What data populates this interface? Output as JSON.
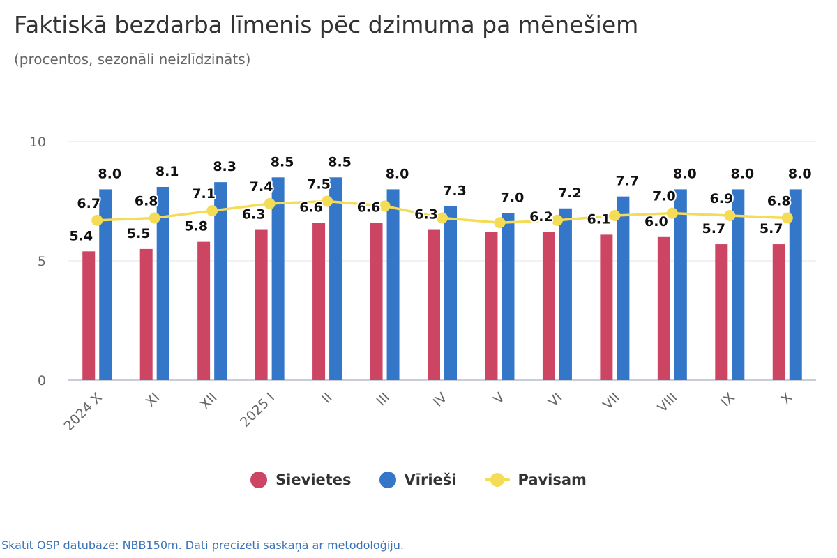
{
  "chart_data": {
    "type": "bar",
    "title": "Faktiskā bezdarba līmenis pēc dzimuma pa mēnešiem",
    "subtitle": "(procentos, sezonāli neizlīdzināts)",
    "categories": [
      "2024 X",
      "XI",
      "XII",
      "2025 I",
      "II",
      "III",
      "IV",
      "V",
      "VI",
      "VII",
      "VIII",
      "IX",
      "X"
    ],
    "series": [
      {
        "name": "Sievietes",
        "type": "bar",
        "color": "#cc4562",
        "values": [
          5.4,
          5.5,
          5.8,
          6.3,
          6.6,
          6.6,
          6.3,
          6.2,
          6.2,
          6.1,
          6.0,
          5.7,
          5.7
        ]
      },
      {
        "name": "Vīrieši",
        "type": "bar",
        "color": "#3477c8",
        "values": [
          8.0,
          8.1,
          8.3,
          8.5,
          8.5,
          8.0,
          7.3,
          7.0,
          7.2,
          7.7,
          8.0,
          8.0,
          8.0
        ]
      },
      {
        "name": "Pavisam",
        "type": "line",
        "color": "#f5dc57",
        "values": [
          6.7,
          6.8,
          7.1,
          7.4,
          7.5,
          7.3,
          6.8,
          6.6,
          6.7,
          6.9,
          7.0,
          6.9,
          6.8
        ]
      }
    ],
    "data_labels": {
      "Sievietes": [
        "5.4",
        "5.5",
        "5.8",
        "6.3",
        "6.6",
        "6.6",
        "6.3",
        "",
        "6.2",
        "6.1",
        "6.0",
        "5.7",
        "5.7"
      ],
      "Vīrieši": [
        "8.0",
        "8.1",
        "8.3",
        "8.5",
        "8.5",
        "8.0",
        "7.3",
        "7.0",
        "7.2",
        "7.7",
        "8.0",
        "8.0",
        "8.0"
      ],
      "Pavisam": [
        "6.7",
        "6.8",
        "7.1",
        "7.4",
        "7.5",
        "",
        "",
        "",
        "",
        "",
        "7.0",
        "6.9",
        "6.8"
      ]
    },
    "ylim": [
      0,
      10
    ],
    "yticks": [
      0,
      5,
      10
    ],
    "ytick_labels": [
      "0",
      "5",
      "10"
    ],
    "grid": true,
    "legend_position": "bottom-center"
  },
  "footer": "Skatīt OSP datubāzē: NBB150m. Dati precizēti saskaņā ar metodoloģiju."
}
